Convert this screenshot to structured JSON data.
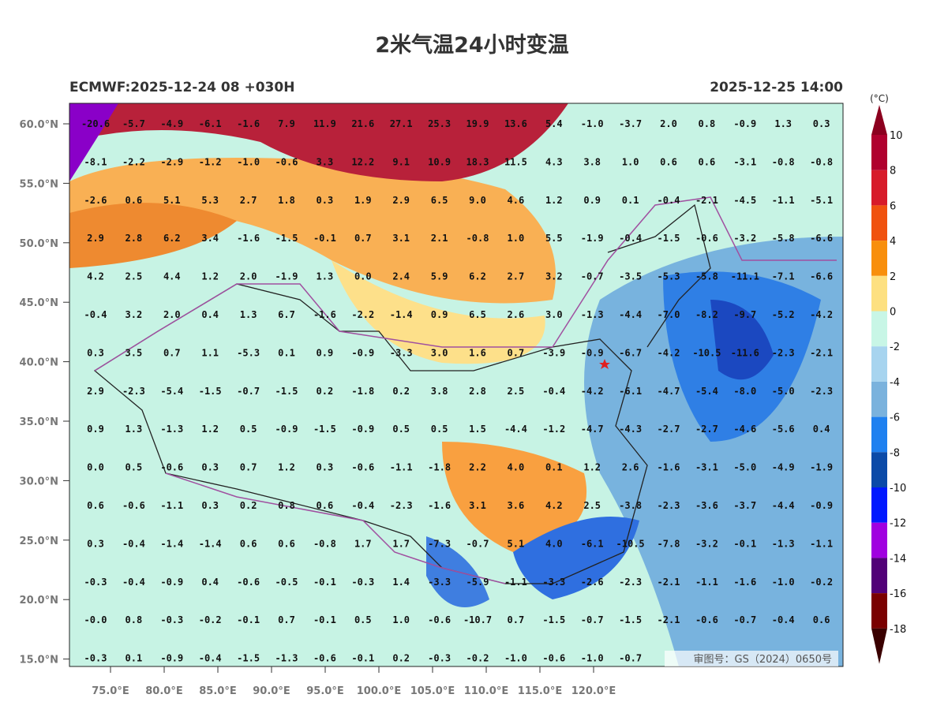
{
  "title": "2米气温24小时变温",
  "subtitle_left": "ECMWF:2025-12-24 08 +030H",
  "subtitle_right": "2025-12-25 14:00",
  "lat_labels": [
    "60.0°N",
    "55.0°N",
    "50.0°N",
    "45.0°N",
    "40.0°N",
    "35.0°N",
    "30.0°N",
    "25.0°N",
    "20.0°N",
    "15.0°N"
  ],
  "lon_labels": [
    "75.0°E",
    "80.0°E",
    "85.0°E",
    "90.0°E",
    "95.0°E",
    "100.0°E",
    "105.0°E",
    "110.0°E",
    "115.0°E",
    "120.0°E"
  ],
  "grid": [
    [
      "-20.6",
      "-5.7",
      "-4.9",
      "-6.1",
      "-1.6",
      "7.9",
      "11.9",
      "21.6",
      "27.1",
      "25.3",
      "19.9",
      "13.6",
      "5.4",
      "-1.0",
      "-3.7",
      "2.0",
      "0.8",
      "-0.9",
      "1.3",
      "0.3"
    ],
    [
      "-8.1",
      "-2.2",
      "-2.9",
      "-1.2",
      "-1.0",
      "-0.6",
      "3.3",
      "12.2",
      "9.1",
      "10.9",
      "18.3",
      "11.5",
      "4.3",
      "3.8",
      "1.0",
      "0.6",
      "0.6",
      "-3.1",
      "-0.8",
      "-0.8"
    ],
    [
      "-2.6",
      "0.6",
      "5.1",
      "5.3",
      "2.7",
      "1.8",
      "0.3",
      "1.9",
      "2.9",
      "6.5",
      "9.0",
      "4.6",
      "1.2",
      "0.9",
      "0.1",
      "-0.4",
      "-2.1",
      "-4.5",
      "-1.1",
      "-5.1"
    ],
    [
      "2.9",
      "2.8",
      "6.2",
      "3.4",
      "-1.6",
      "-1.5",
      "-0.1",
      "0.7",
      "3.1",
      "2.1",
      "-0.8",
      "1.0",
      "5.5",
      "-1.9",
      "-0.4",
      "-1.5",
      "-0.6",
      "-3.2",
      "-5.8",
      "-6.6"
    ],
    [
      "4.2",
      "2.5",
      "4.4",
      "1.2",
      "2.0",
      "-1.9",
      "1.3",
      "0.0",
      "2.4",
      "5.9",
      "6.2",
      "2.7",
      "3.2",
      "-0.7",
      "-3.5",
      "-5.3",
      "-5.8",
      "-11.1",
      "-7.1",
      "-6.6"
    ],
    [
      "-0.4",
      "3.2",
      "2.0",
      "0.4",
      "1.3",
      "6.7",
      "-1.6",
      "-2.2",
      "-1.4",
      "0.9",
      "6.5",
      "2.6",
      "3.0",
      "-1.3",
      "-4.4",
      "-7.0",
      "-8.2",
      "-9.7",
      "-5.2",
      "-4.2"
    ],
    [
      "0.3",
      "3.5",
      "0.7",
      "1.1",
      "-5.3",
      "0.1",
      "0.9",
      "-0.9",
      "-3.3",
      "3.0",
      "1.6",
      "0.7",
      "-3.9",
      "-0.9",
      "-6.7",
      "-4.2",
      "-10.5",
      "-11.6",
      "-2.3",
      "-2.1"
    ],
    [
      "2.9",
      "-2.3",
      "-5.4",
      "-1.5",
      "-0.7",
      "-1.5",
      "0.2",
      "-1.8",
      "0.2",
      "3.8",
      "2.8",
      "2.5",
      "-0.4",
      "-4.2",
      "-6.1",
      "-4.7",
      "-5.4",
      "-8.0",
      "-5.0",
      "-2.3"
    ],
    [
      "0.9",
      "1.3",
      "-1.3",
      "1.2",
      "0.5",
      "-0.9",
      "-1.5",
      "-0.9",
      "0.5",
      "0.5",
      "1.5",
      "-4.4",
      "-1.2",
      "-4.7",
      "-4.3",
      "-2.7",
      "-2.7",
      "-4.6",
      "-5.6",
      "0.4"
    ],
    [
      "0.0",
      "0.5",
      "-0.6",
      "0.3",
      "0.7",
      "1.2",
      "0.3",
      "-0.6",
      "-1.1",
      "-1.8",
      "2.2",
      "4.0",
      "0.1",
      "1.2",
      "2.6",
      "-1.6",
      "-3.1",
      "-5.0",
      "-4.9",
      "-1.9"
    ],
    [
      "0.6",
      "-0.6",
      "-1.1",
      "0.3",
      "0.2",
      "0.8",
      "0.6",
      "-0.4",
      "-2.3",
      "-1.6",
      "3.1",
      "3.6",
      "4.2",
      "2.5",
      "-3.8",
      "-2.3",
      "-3.6",
      "-3.7",
      "-4.4",
      "-0.9"
    ],
    [
      "0.3",
      "-0.4",
      "-1.4",
      "-1.4",
      "0.6",
      "0.6",
      "-0.8",
      "1.7",
      "1.7",
      "-7.3",
      "-0.7",
      "5.1",
      "4.0",
      "-6.1",
      "-10.5",
      "-7.8",
      "-3.2",
      "-0.1",
      "-1.3",
      "-1.1"
    ],
    [
      "-0.3",
      "-0.4",
      "-0.9",
      "0.4",
      "-0.6",
      "-0.5",
      "-0.1",
      "-0.3",
      "1.4",
      "-3.3",
      "-5.9",
      "-1.1",
      "-3.3",
      "-2.6",
      "-2.3",
      "-2.1",
      "-1.1",
      "-1.6",
      "-1.0",
      "-0.2"
    ],
    [
      "-0.0",
      "0.8",
      "-0.3",
      "-0.2",
      "-0.1",
      "0.7",
      "-0.1",
      "0.5",
      "1.0",
      "-0.6",
      "-10.7",
      "0.7",
      "-1.5",
      "-0.7",
      "-1.5",
      "-2.1",
      "-0.6",
      "-0.7",
      "-0.4",
      "0.6"
    ],
    [
      "-0.3",
      "0.1",
      "-0.9",
      "-0.4",
      "-1.5",
      "-1.3",
      "-0.6",
      "-0.1",
      "0.2",
      "-0.3",
      "-0.2",
      "-1.0",
      "-0.6",
      "-1.0",
      "-0.7"
    ]
  ],
  "colorbar": {
    "unit": "(°C)",
    "ticks": [
      "10",
      "8",
      "6",
      "4",
      "2",
      "0",
      "-2",
      "-4",
      "-6",
      "-8",
      "-10",
      "-12",
      "-14",
      "-16",
      "-18"
    ]
  },
  "review_number": "审图号：GS（2024）0650号"
}
